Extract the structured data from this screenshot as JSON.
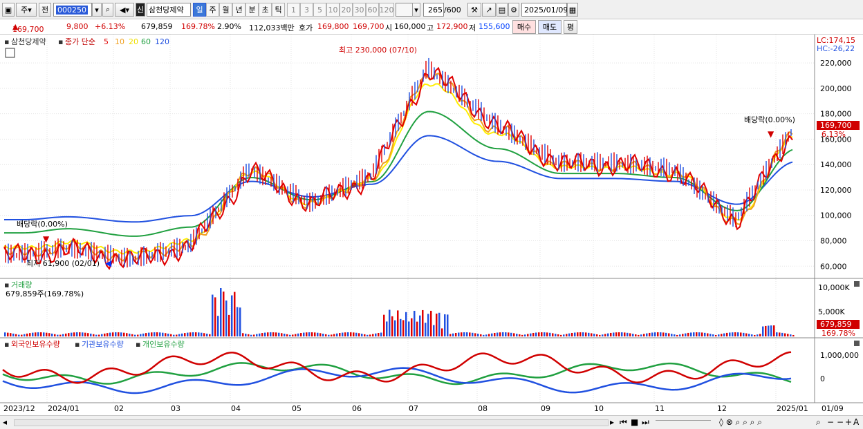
{
  "toolbar": {
    "type_select": "주",
    "prev_label": "전",
    "code": "000250",
    "name_prefix": "신",
    "stock_name": "삼천당제약",
    "periods": [
      "일",
      "주",
      "월",
      "년",
      "분",
      "초",
      "틱"
    ],
    "active_period": "일",
    "intervals": [
      "1",
      "3",
      "5",
      "10",
      "20",
      "30",
      "60",
      "120"
    ],
    "count": "265",
    "count_total": "/600",
    "date": "2025/01/09"
  },
  "info": {
    "price": "169,700",
    "change": "9,800",
    "change_pct": "+6.13%",
    "volume": "679,859",
    "volume_pct": "169.78%",
    "turnover_pct": "2.90%",
    "amount": "112,033백만",
    "quote_label": "호가",
    "bid": "169,800",
    "ask": "169,700",
    "open_label": "시",
    "open": "160,000",
    "high_label": "고",
    "high": "172,900",
    "low_label": "저",
    "low": "155,600",
    "buy_label": "매수",
    "sell_label": "매도",
    "avg_label": "평"
  },
  "price_panel": {
    "name": "삼천당제약",
    "ma_prefix": "종가 단순",
    "ma_periods": [
      "5",
      "10",
      "20",
      "60",
      "120"
    ],
    "lc": "LC:174,15",
    "hc": "HC:-26,22",
    "high_note": "최고 230,000 (07/10)",
    "low_note": "최저 61,900 (02/01)",
    "dividend_1": "배당락(0.00%)",
    "dividend_2": "배당락(0.00%)",
    "current_tag": "169,700",
    "current_pct_tag": "6.13%"
  },
  "volume_panel": {
    "title": "거래량",
    "value": "679,859주(169.78%)",
    "current_tag": "679,859",
    "current_pct_tag": "169.78%",
    "axis": [
      "10,000K",
      "5,000K"
    ]
  },
  "holding_panel": {
    "legend": [
      "외국인보유수량",
      "기관보유수량",
      "개인보유수량"
    ],
    "axis": [
      "1,000,000",
      "0"
    ]
  },
  "x_labels": [
    "2023/12",
    "2024/01",
    "02",
    "03",
    "04",
    "05",
    "06",
    "07",
    "08",
    "09",
    "10",
    "11",
    "12",
    "2025/01"
  ],
  "x_right_label": "01/09",
  "chart_data": {
    "type": "line",
    "title": "",
    "price_axis": [
      60000,
      80000,
      100000,
      120000,
      140000,
      160000,
      180000,
      200000,
      220000
    ],
    "ylim": [
      52000,
      238000
    ],
    "close_series": [
      {
        "month": "2023/12",
        "value": 68000
      },
      {
        "month": "2024/01",
        "value": 73000
      },
      {
        "month": "02",
        "value": 64000
      },
      {
        "month": "03",
        "value": 75000
      },
      {
        "month": "04",
        "value": 135000
      },
      {
        "month": "05",
        "value": 108000
      },
      {
        "month": "06",
        "value": 130000
      },
      {
        "month": "07",
        "value": 215000
      },
      {
        "month": "08",
        "value": 170000
      },
      {
        "month": "09",
        "value": 140000
      },
      {
        "month": "10",
        "value": 140000
      },
      {
        "month": "11",
        "value": 135000
      },
      {
        "month": "12",
        "value": 95000
      },
      {
        "month": "2025/01",
        "value": 169700
      }
    ],
    "colors": {
      "ma5": "#e00000",
      "ma10": "#f0a020",
      "ma20": "#ffee00",
      "ma60": "#20a040",
      "ma120": "#2050e0"
    }
  }
}
